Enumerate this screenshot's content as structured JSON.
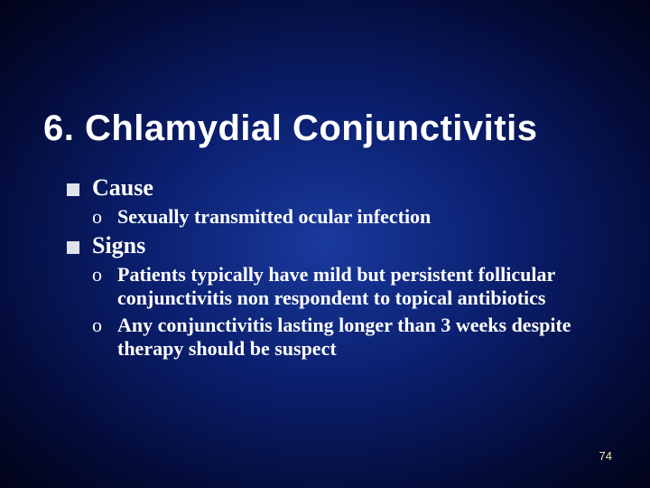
{
  "slide": {
    "title": "6. Chlamydial Conjunctivitis",
    "page_number": "74",
    "background": {
      "center_color": "#1a3a9e",
      "mid_color": "#0a1f6e",
      "outer_color": "#040c3a",
      "edge_color": "#010418"
    },
    "title_style": {
      "font_family": "Arial",
      "font_size_pt": 40,
      "font_weight": "bold",
      "color": "#ffffff"
    },
    "body_style": {
      "font_family": "Times New Roman",
      "l1_font_size_pt": 26,
      "l2_font_size_pt": 22,
      "font_weight": "bold",
      "color": "#ffffff",
      "bullet_square_color": "#dfe4ea",
      "sub_bullet_marker": "o"
    },
    "page_num_style": {
      "font_family": "Arial",
      "font_size_pt": 13,
      "color": "#f5e6a0"
    },
    "items": [
      {
        "label": "Cause",
        "sub": [
          "Sexually transmitted ocular infection"
        ]
      },
      {
        "label": "Signs",
        "sub": [
          "Patients typically have mild but persistent follicular conjunctivitis non respondent to topical antibiotics",
          "Any conjunctivitis lasting longer than 3 weeks despite therapy should be suspect"
        ]
      }
    ]
  }
}
